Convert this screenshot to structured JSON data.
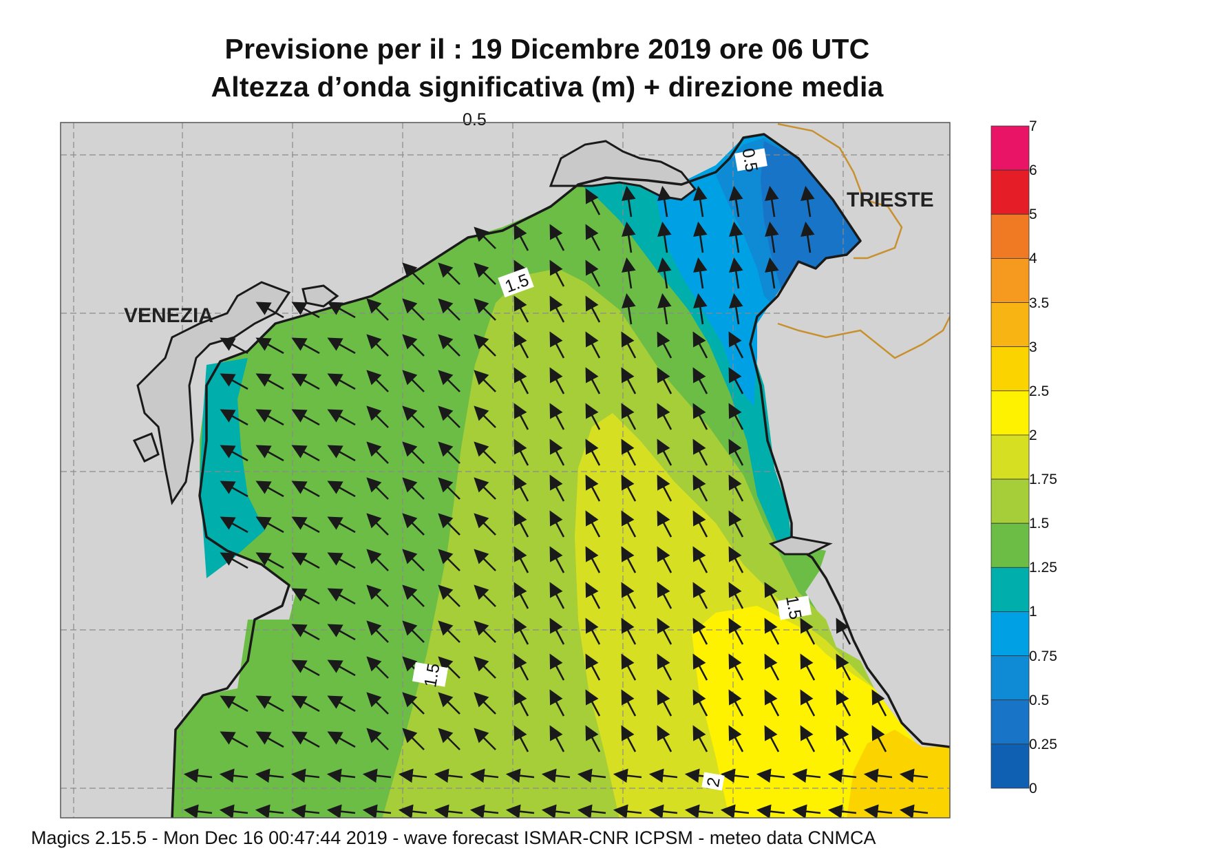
{
  "header": {
    "title_line1": "Previsione per il  :  19 Dicembre  2019   ore 06 UTC",
    "title_line2": "Altezza d’onda significativa (m) + direzione media"
  },
  "map": {
    "cities": [
      "VENEZIA",
      "TRIESTE"
    ],
    "contour_labels": [
      "1.5",
      "1.5",
      "1.5",
      "2",
      "0.5",
      "0.5"
    ],
    "colors": {
      "land": "#d3d3d3",
      "grid": "#8a8a8a",
      "coast": "#1a1a1a",
      "border": "#c8902e",
      "arrow": "#1a1a1a"
    }
  },
  "colorbar": {
    "labels": [
      "7",
      "6",
      "5",
      "4",
      "3.5",
      "3",
      "2.5",
      "2",
      "1.75",
      "1.5",
      "1.25",
      "1",
      "0.75",
      "0.5",
      "0.25",
      "0"
    ],
    "colors": [
      "#ea1466",
      "#e51d26",
      "#f07a23",
      "#f69a1f",
      "#f8b413",
      "#fbd400",
      "#fff200",
      "#d7df23",
      "#a6ce39",
      "#6bbd45",
      "#00aeac",
      "#00a1e4",
      "#0f8bd6",
      "#1874c6",
      "#0f5fb2"
    ]
  },
  "footer": {
    "text": "Magics 2.15.5 - Mon Dec 16 00:47:44 2019 - wave forecast  ISMAR-CNR  ICPSM - meteo data   CNMCA"
  }
}
